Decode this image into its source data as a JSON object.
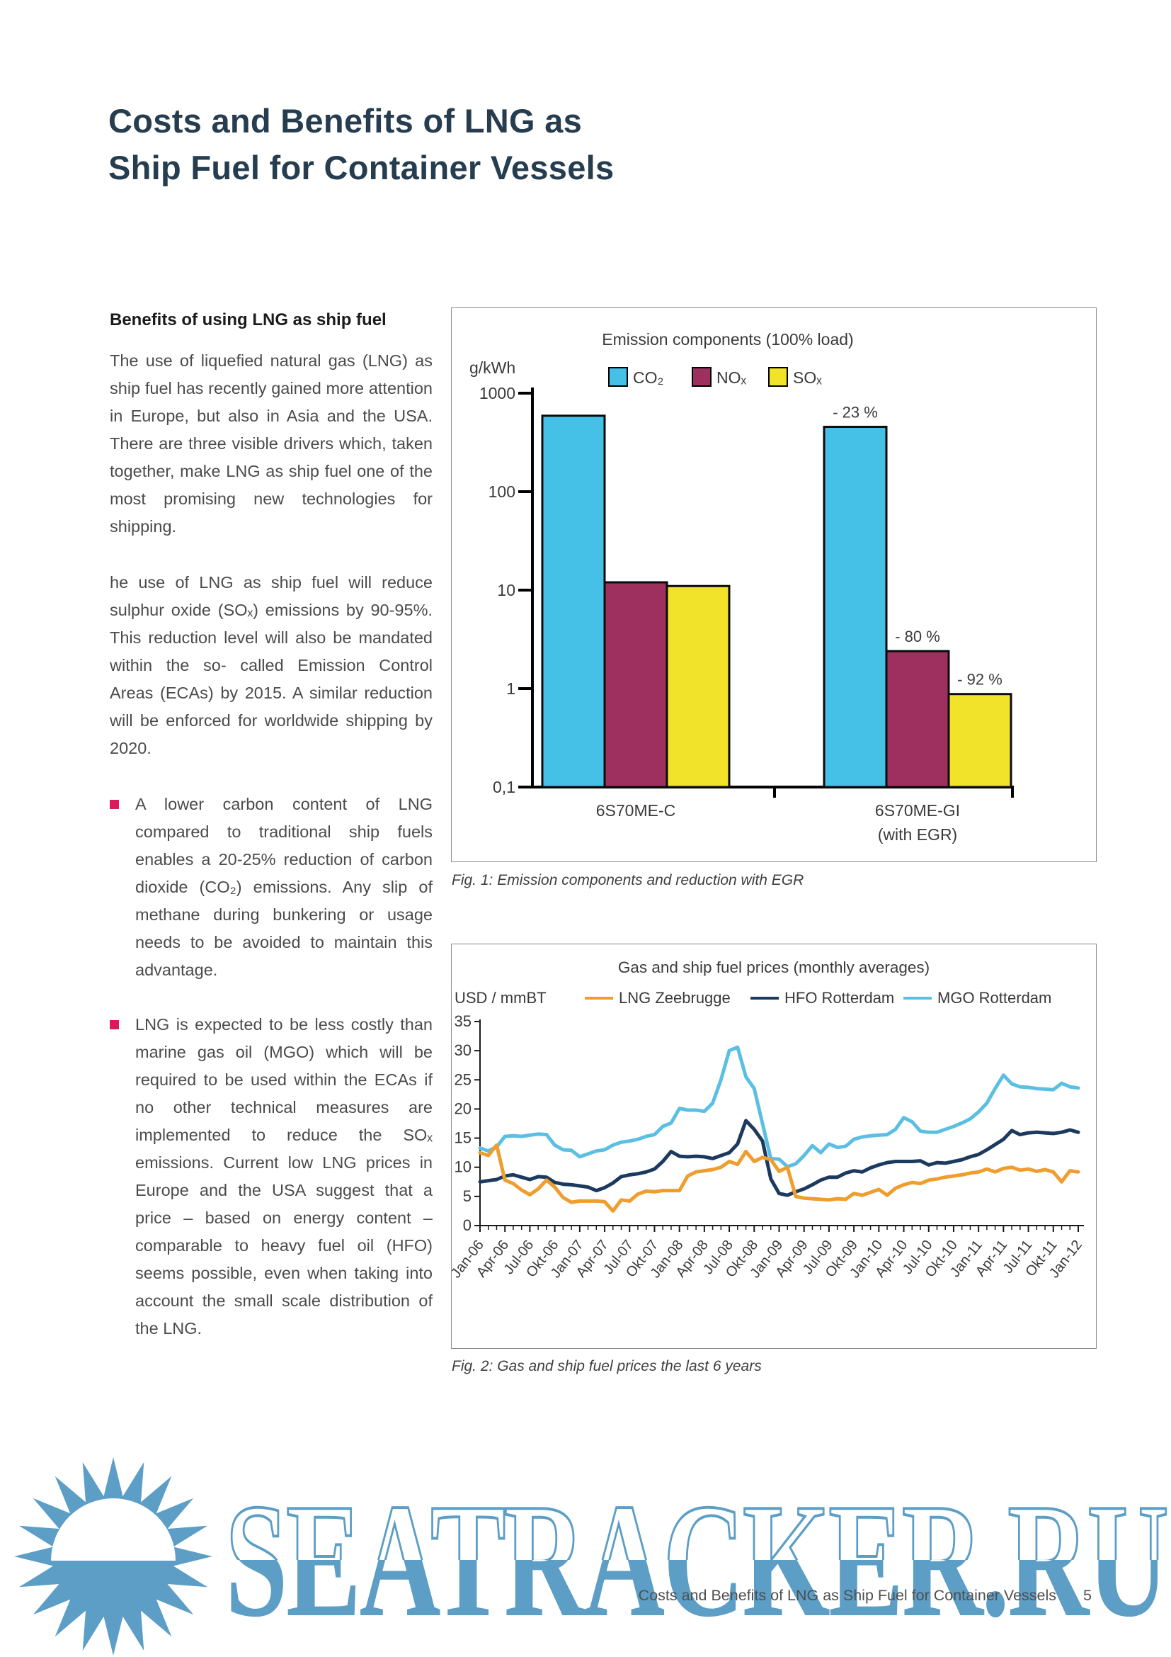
{
  "page": {
    "title": [
      "Costs and Benefits of LNG as",
      "Ship Fuel for Container Vessels"
    ],
    "footer": {
      "text": "Costs and Benefits of LNG as Ship Fuel for Container Vessels",
      "page_number": "5"
    },
    "watermark_text": "SEATRACKER.RU",
    "accent_colors": {
      "title_navy": "#263C4F",
      "bullet_red": "#DC1A5B",
      "watermark_blue": "#5C9EC6"
    }
  },
  "left_column": {
    "heading": "Benefits of using LNG as ship fuel",
    "paragraphs": [
      "The use of liquefied natural gas (LNG) as ship fuel has recently gained more attention in Europe, but also in Asia and the USA. There are three visible drivers which, taken together, make LNG as ship fuel one of the most promising new technologies for shipping.",
      "he use of LNG as ship fuel will reduce sulphur oxide (SOₓ) emissions by 90-95%. This reduction level will also be mandated within the so- called Emission Control Areas (ECAs) by 2015. A similar reduction will be enforced for worldwide shipping by 2020."
    ],
    "bullets": [
      "A lower carbon content of LNG compared to traditional ship fuels enables a 20-25% reduction of carbon dioxide (CO₂) emissions. Any slip of methane during bunkering or usage needs to be avoided to maintain this advantage.",
      "LNG is expected to be less costly than marine gas oil (MGO) which will be required to be used within the ECAs if no other technical measures are implemented to reduce the SOₓ emissions. Current low LNG prices in Europe and the USA suggest that a price – based on energy content – comparable to heavy fuel oil (HFO) seems possible, even when taking into account the small scale distribution of the LNG."
    ]
  },
  "chart_data": [
    {
      "type": "bar",
      "title": "Emission components (100% load)",
      "y_axis_label": "g/kWh",
      "y_scale": "log",
      "y_range": [
        0.1,
        1000
      ],
      "y_tick_labels": [
        "1000",
        "100",
        "10",
        "1",
        "0,1"
      ],
      "series": [
        {
          "name": "CO₂",
          "color": "#45C1E8"
        },
        {
          "name": "NOₓ",
          "color": "#9E3060"
        },
        {
          "name": "SOₓ",
          "color": "#F0E32A"
        }
      ],
      "groups": [
        {
          "label": "6S70ME-C",
          "sub_label": "",
          "values": [
            590,
            12,
            11
          ]
        },
        {
          "label": "6S70ME-GI",
          "sub_label": "(with EGR)",
          "values": [
            455,
            2.4,
            0.88
          ],
          "reduction_labels": [
            "- 23 %",
            "- 80 %",
            "- 92 %"
          ]
        }
      ],
      "caption": "Fig. 1: Emission components and reduction with EGR"
    },
    {
      "type": "line",
      "title": "Gas and ship fuel prices (monthly averages)",
      "y_axis_label": "USD / mmBT",
      "y_ticks": [
        0,
        5,
        10,
        15,
        20,
        25,
        30,
        35
      ],
      "ylim": [
        0,
        35
      ],
      "x_tick_labels": [
        "Jan-06",
        "Apr-06",
        "Jul-06",
        "Okt-06",
        "Jan-07",
        "Apr-07",
        "Jul-07",
        "Okt-07",
        "Jan-08",
        "Apr-08",
        "Jul-08",
        "Okt-08",
        "Jan-09",
        "Apr-09",
        "Jul-09",
        "Okt-09",
        "Jan-10",
        "Apr-10",
        "Jul-10",
        "Okt-10",
        "Jan-11",
        "Apr-11",
        "Jul-11",
        "Okt-11",
        "Jan-12"
      ],
      "months_per_tick": 3,
      "series": [
        {
          "name": "LNG Zeebrugge",
          "color": "#EF9D2E",
          "values": [
            12.5,
            12.0,
            13.8,
            7.8,
            7.2,
            6.1,
            5.3,
            6.3,
            7.8,
            6.6,
            4.8,
            4.0,
            4.2,
            4.2,
            4.2,
            4.1,
            2.5,
            4.4,
            4.2,
            5.4,
            5.9,
            5.8,
            6.0,
            6.0,
            6.0,
            8.5,
            9.2,
            9.4,
            9.6,
            10.0,
            11.0,
            10.5,
            12.7,
            11.0,
            11.7,
            11.3,
            9.3,
            10.0,
            5.0,
            4.7,
            4.6,
            4.5,
            4.4,
            4.6,
            4.5,
            5.5,
            5.2,
            5.7,
            6.2,
            5.2,
            6.4,
            7.0,
            7.4,
            7.2,
            7.8,
            8.0,
            8.3,
            8.5,
            8.7,
            9.0,
            9.2,
            9.7,
            9.2,
            9.8,
            10.0,
            9.5,
            9.7,
            9.3,
            9.6,
            9.2,
            7.5,
            9.4,
            9.2
          ]
        },
        {
          "name": "HFO Rotterdam",
          "color": "#1B3A5E",
          "values": [
            7.5,
            7.7,
            7.9,
            8.5,
            8.7,
            8.3,
            7.9,
            8.4,
            8.3,
            7.4,
            7.1,
            7.0,
            6.8,
            6.6,
            6.0,
            6.5,
            7.3,
            8.4,
            8.7,
            8.9,
            9.2,
            9.7,
            11.0,
            12.7,
            11.9,
            11.8,
            11.9,
            11.8,
            11.5,
            12.0,
            12.5,
            14.0,
            18.0,
            16.5,
            14.5,
            8.0,
            5.5,
            5.2,
            5.8,
            6.3,
            7.0,
            7.8,
            8.3,
            8.3,
            9.0,
            9.4,
            9.2,
            9.9,
            10.4,
            10.8,
            11.0,
            11.0,
            11.0,
            11.1,
            10.4,
            10.8,
            10.7,
            11.0,
            11.3,
            11.8,
            12.2,
            13.0,
            13.9,
            14.8,
            16.3,
            15.6,
            15.9,
            16.0,
            15.9,
            15.8,
            16.0,
            16.4,
            16.0
          ]
        },
        {
          "name": "MGO Rotterdam",
          "color": "#5BBFE4",
          "values": [
            13.3,
            12.8,
            13.5,
            15.3,
            15.4,
            15.3,
            15.5,
            15.7,
            15.6,
            13.8,
            13.0,
            12.9,
            11.8,
            12.3,
            12.8,
            13.0,
            13.8,
            14.3,
            14.5,
            14.8,
            15.3,
            15.6,
            17.0,
            17.6,
            20.1,
            19.8,
            19.8,
            19.6,
            21.0,
            25.0,
            30.0,
            30.6,
            25.5,
            23.5,
            17.5,
            11.5,
            11.4,
            10.1,
            10.6,
            12.0,
            13.7,
            12.5,
            14.0,
            13.4,
            13.6,
            14.8,
            15.2,
            15.4,
            15.5,
            15.6,
            16.5,
            18.5,
            17.8,
            16.2,
            16.0,
            16.0,
            16.5,
            17.0,
            17.6,
            18.3,
            19.5,
            21.0,
            23.5,
            25.8,
            24.3,
            23.8,
            23.7,
            23.5,
            23.4,
            23.3,
            24.4,
            23.8,
            23.6
          ]
        }
      ],
      "caption": "Fig. 2: Gas and ship fuel prices the last 6 years"
    }
  ]
}
